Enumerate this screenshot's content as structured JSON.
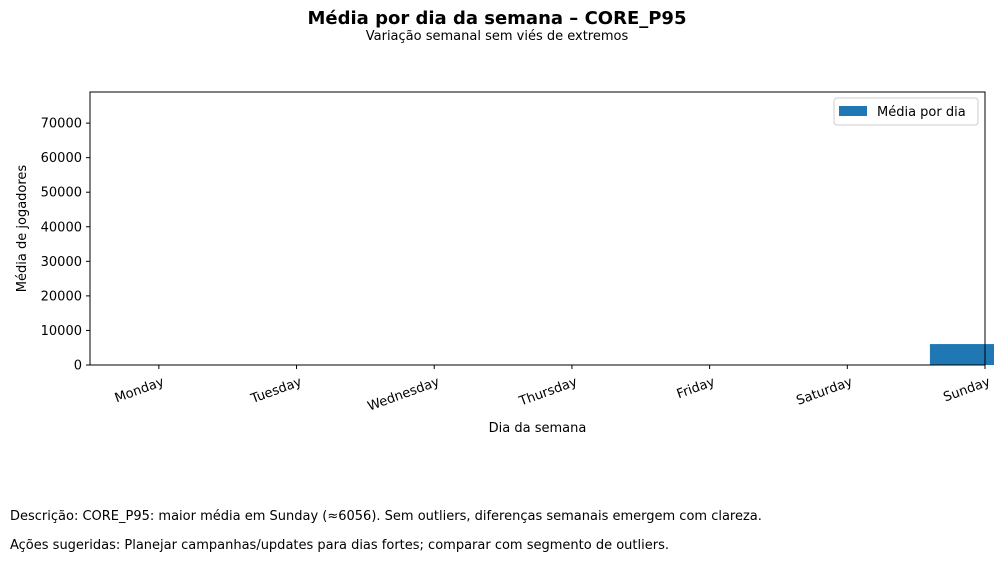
{
  "chart_data": {
    "type": "bar",
    "title": "Média por dia da semana – CORE_P95",
    "subtitle": "Variação semanal sem viés de extremos",
    "xlabel": "Dia da semana",
    "ylabel": "Média de jogadores",
    "categories": [
      "Monday",
      "Tuesday",
      "Wednesday",
      "Thursday",
      "Friday",
      "Saturday",
      "Sunday"
    ],
    "series": [
      {
        "name": "Média por dia",
        "values": [
          0,
          0,
          0,
          0,
          0,
          0,
          6056
        ],
        "color": "#1f77b4"
      }
    ],
    "ylim": [
      0,
      79000
    ],
    "yticks": [
      0,
      10000,
      20000,
      30000,
      40000,
      50000,
      60000,
      70000
    ],
    "xlim": [
      -0.5,
      6.0
    ],
    "bar_width": 0.8,
    "grid": false,
    "legend": "top-right"
  },
  "notes": {
    "description": "Descrição: CORE_P95: maior média em Sunday (≈6056). Sem outliers, diferenças semanais emergem com clareza.",
    "actions": "Ações sugeridas: Planejar campanhas/updates para dias fortes; comparar com segmento de outliers."
  }
}
